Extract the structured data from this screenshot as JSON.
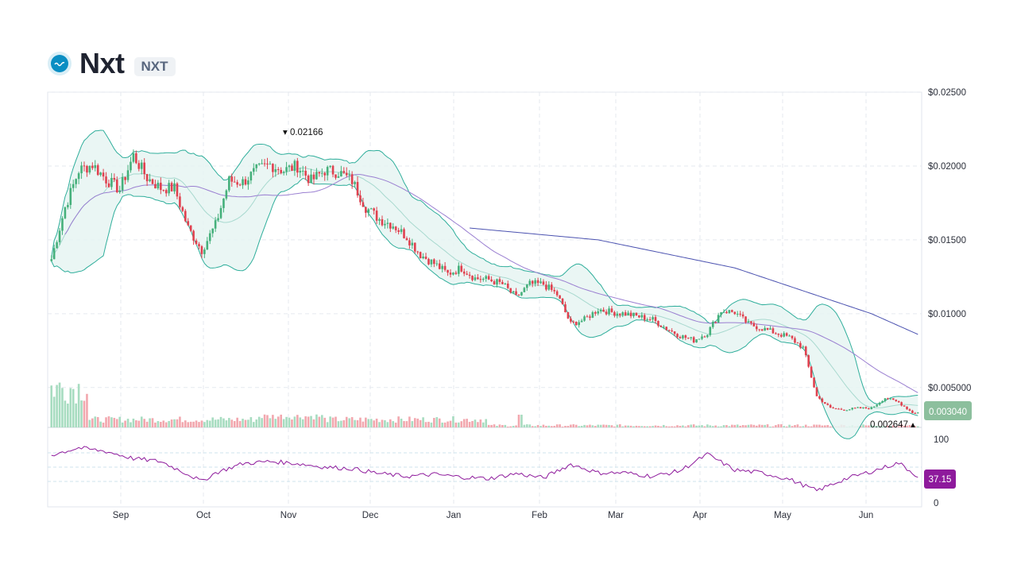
{
  "header": {
    "name": "Nxt",
    "symbol": "NXT",
    "logo_icon": "nxt-logo-icon"
  },
  "colors": {
    "up": "#45b07b",
    "down": "#e0414f",
    "volume_up": "#a7dcc0",
    "volume_down": "#f2a7ae",
    "bollinger": "#2fae9b",
    "bollinger_fill": "#e6f4f2",
    "ma_purple": "#9a7fd1",
    "ma_long": "#4b52b0",
    "rsi": "#8e1a9c",
    "price_badge": "#8cbf9d",
    "rsi_badge": "#8e1a9c",
    "grid": "#e5e9ef"
  },
  "chart_data": [
    {
      "type": "candlestick",
      "title": "",
      "x_ticks": [
        "Sep",
        "Oct",
        "Nov",
        "Dec",
        "Jan",
        "Feb",
        "Mar",
        "Apr",
        "May",
        "Jun"
      ],
      "y_ticks": [
        "$0.02500",
        "$0.02000",
        "$0.01500",
        "$0.01000",
        "$0.005000"
      ],
      "ylim": [
        0.0023,
        0.025
      ],
      "grid": true,
      "annotations": {
        "high_label": "0.02166",
        "low_label": "0.002647"
      },
      "current_price_label": "0.003040",
      "series": [
        {
          "name": "",
          "kind": "close",
          "x": [
            0,
            5,
            10,
            15,
            20,
            25,
            30,
            35,
            40,
            45,
            50,
            55,
            60,
            65,
            70,
            75,
            80,
            85,
            90,
            95,
            100,
            105,
            110,
            115,
            120,
            125,
            130,
            135,
            140,
            145,
            150,
            155,
            160,
            165,
            170,
            175,
            180,
            185,
            190,
            195,
            200,
            205,
            210,
            215,
            220,
            225,
            230,
            235,
            240,
            245,
            250,
            255,
            260,
            265,
            270,
            275,
            280,
            285,
            290,
            295,
            300,
            305,
            310,
            315
          ],
          "values": [
            0.0137,
            0.0172,
            0.0197,
            0.0201,
            0.0191,
            0.0184,
            0.0207,
            0.0192,
            0.0185,
            0.0185,
            0.0158,
            0.0143,
            0.016,
            0.019,
            0.0189,
            0.0197,
            0.0201,
            0.0197,
            0.02,
            0.019,
            0.0197,
            0.0196,
            0.019,
            0.0172,
            0.0164,
            0.016,
            0.0152,
            0.014,
            0.0134,
            0.0127,
            0.0131,
            0.0124,
            0.0123,
            0.012,
            0.0111,
            0.012,
            0.012,
            0.0113,
            0.0093,
            0.0096,
            0.0103,
            0.0101,
            0.01,
            0.0098,
            0.0096,
            0.009,
            0.0085,
            0.0082,
            0.0087,
            0.0102,
            0.0101,
            0.0093,
            0.009,
            0.0087,
            0.0084,
            0.0077,
            0.0044,
            0.0036,
            0.0035,
            0.0036,
            0.0036,
            0.0043,
            0.004,
            0.0033
          ]
        },
        {
          "name": "",
          "kind": "moving-average-200",
          "x": [
            153,
            200,
            250,
            300,
            317
          ],
          "values": [
            0.0158,
            0.015,
            0.0131,
            0.01,
            0.0086
          ]
        }
      ]
    },
    {
      "type": "line",
      "title": "",
      "y_ticks": [
        "100",
        "0"
      ],
      "ylim": [
        0,
        100
      ],
      "current_value_label": "37.15",
      "series": [
        {
          "name": "",
          "x": [
            0,
            10,
            20,
            30,
            40,
            50,
            55,
            60,
            70,
            80,
            90,
            100,
            110,
            120,
            130,
            140,
            150,
            160,
            170,
            180,
            190,
            200,
            210,
            220,
            230,
            240,
            250,
            260,
            270,
            280,
            290,
            300,
            310,
            317
          ],
          "values": [
            67,
            77,
            72,
            62,
            58,
            40,
            30,
            42,
            55,
            58,
            55,
            50,
            48,
            41,
            37,
            40,
            36,
            34,
            41,
            35,
            54,
            42,
            42,
            37,
            45,
            68,
            46,
            42,
            33,
            17,
            33,
            44,
            56,
            37
          ]
        }
      ]
    }
  ]
}
